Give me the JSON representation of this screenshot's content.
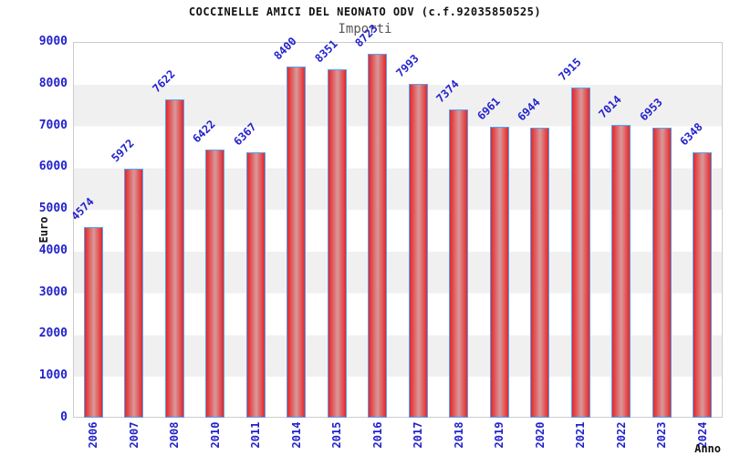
{
  "chart_data": {
    "type": "bar",
    "title": "COCCINELLE AMICI DEL NEONATO ODV (c.f.92035850525)",
    "subtitle": "Importi",
    "xlabel": "Anno",
    "ylabel": "Euro",
    "categories": [
      "2006",
      "2007",
      "2008",
      "2010",
      "2011",
      "2014",
      "2015",
      "2016",
      "2017",
      "2018",
      "2019",
      "2020",
      "2021",
      "2022",
      "2023",
      "2024"
    ],
    "values": [
      4574,
      5972,
      7622,
      6422,
      6367,
      8400,
      8351,
      8723,
      7993,
      7374,
      6961,
      6944,
      7915,
      7014,
      6953,
      6348
    ],
    "ylim": [
      0,
      9000
    ],
    "ytick_interval": 1000,
    "yticks": [
      9000,
      8000,
      7000,
      6000,
      5000,
      4000,
      3000,
      2000,
      1000,
      0
    ],
    "grid": "alternating horizontal bands",
    "legend_position": "none"
  },
  "colors": {
    "axis_label_blue": "#2222cc",
    "bar_fill_edge": "#e62629",
    "bar_fill_center": "#d9999a",
    "bar_border": "#4fa3f7",
    "band_gray": "#f0f0f0",
    "band_white": "#ffffff",
    "plot_border": "#cccccc",
    "title_black": "#111111",
    "subtitle_gray": "#555555"
  }
}
